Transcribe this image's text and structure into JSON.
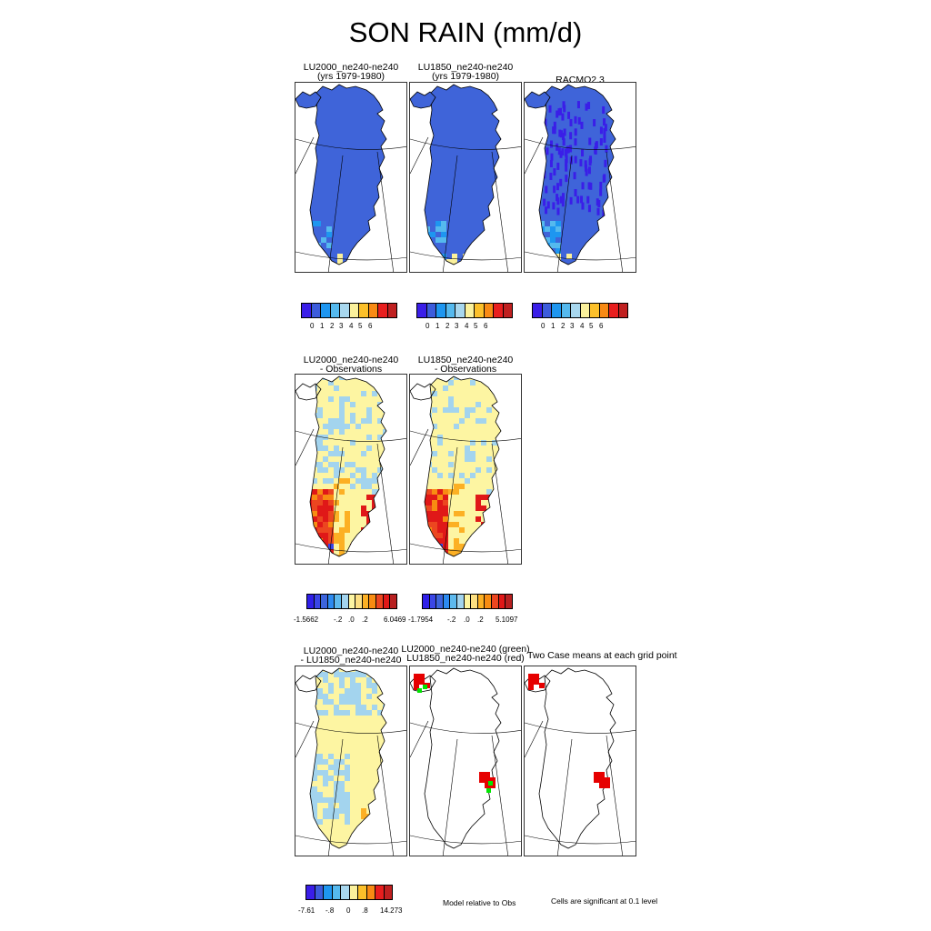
{
  "title": "SON RAIN (mm/d)",
  "row1": {
    "panels": [
      {
        "title_line1": "LU2000_ne240-ne240",
        "title_line2": "(yrs 1979-1980)"
      },
      {
        "title_line1": "LU1850_ne240-ne240",
        "title_line2": "(yrs 1979-1980)"
      },
      {
        "title_line1": "RACMO2.3",
        "title_line2": ""
      }
    ],
    "colorbar_labels": [
      "0",
      "1",
      "2",
      "3",
      "4",
      "5",
      "6"
    ]
  },
  "row2": {
    "panels": [
      {
        "title_line1": "LU2000_ne240-ne240",
        "title_line2": "- Observations"
      },
      {
        "title_line1": "LU1850_ne240-ne240",
        "title_line2": "- Observations"
      }
    ],
    "colorbar1_labels": {
      "min": "-1.5662",
      "a": "-.2",
      "b": ".0",
      "c": ".2",
      "max": "6.0469"
    },
    "colorbar2_labels": {
      "min": "-1.7954",
      "a": "-.2",
      "b": ".0",
      "c": ".2",
      "max": "5.1097"
    }
  },
  "row3": {
    "panels": [
      {
        "title_line1": "LU2000_ne240-ne240",
        "title_line2": "- LU1850_ne240-ne240"
      },
      {
        "title_line1": "LU2000_ne240-ne240 (green)",
        "title_line2": "LU1850_ne240-ne240 (red)"
      },
      {
        "title_line1": "Two Case means at each grid point",
        "title_line2": ""
      }
    ],
    "colorbar_labels": {
      "min": "-7.61",
      "a": "-.8",
      "b": "0",
      "c": ".8",
      "max": "14.273"
    },
    "note_model": "Model relative to Obs",
    "note_sig": "Cells are significant at 0.1 level"
  },
  "colors": {
    "abs_scale": [
      "#3a1ee8",
      "#3c5cdc",
      "#1e96f0",
      "#55b9ee",
      "#a8d7ee",
      "#fbf19c",
      "#fcc02a",
      "#f88a14",
      "#e81e1e",
      "#c02020"
    ],
    "diff_scale": [
      "#2f1fe8",
      "#3a46e6",
      "#3c64dc",
      "#2c8af0",
      "#5db9ee",
      "#a3d4ee",
      "#fdf5a2",
      "#fde082",
      "#fcb024",
      "#f88c12",
      "#ec4620",
      "#e01818",
      "#b82020"
    ],
    "land_blue": "#3f64d9",
    "green": "#00e600",
    "red": "#e60000"
  }
}
